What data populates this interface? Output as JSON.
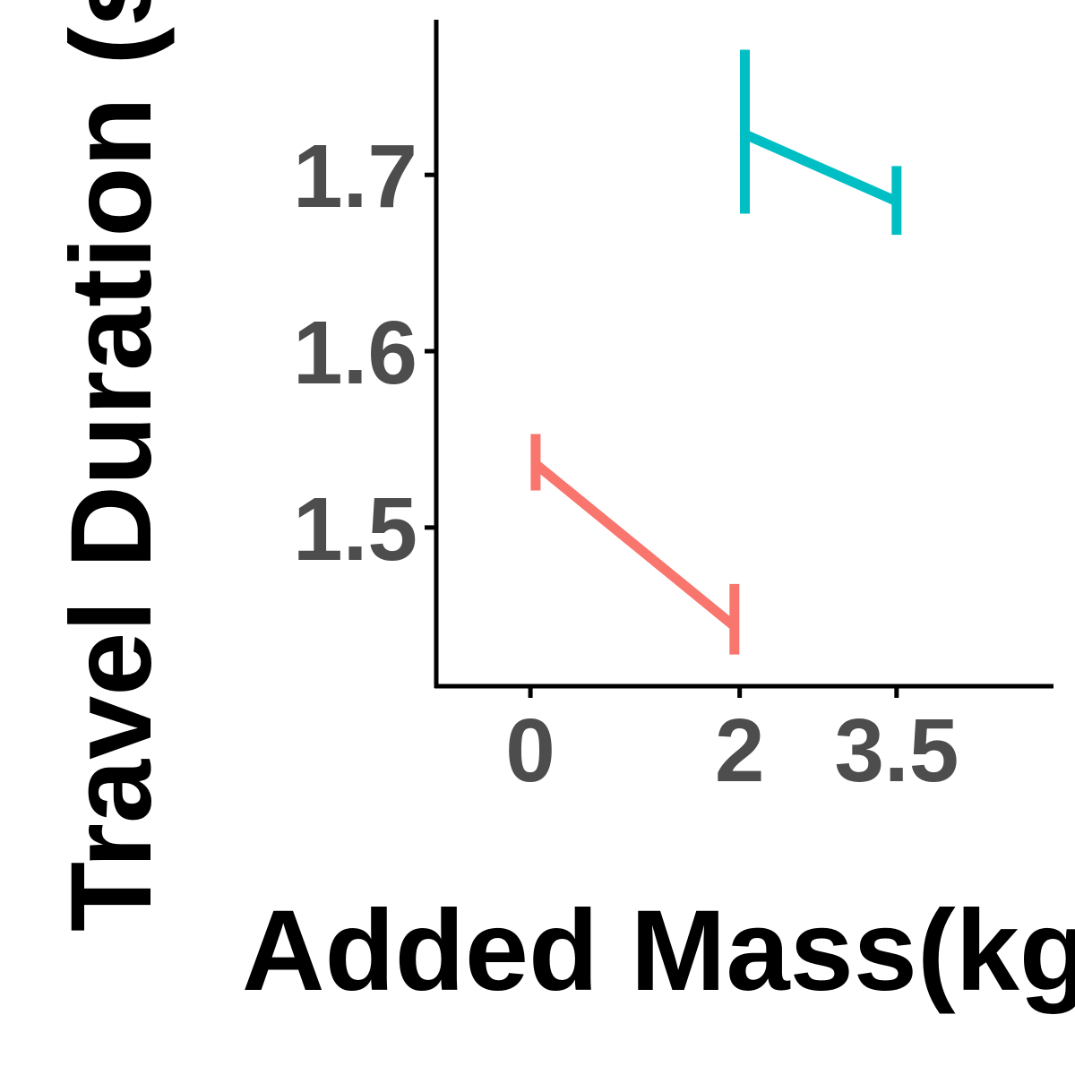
{
  "chart_data": {
    "type": "line",
    "xlabel": "Added Mass(kg)",
    "ylabel": "Travel Duration (s)",
    "x_ticks": [
      0,
      2,
      3.5
    ],
    "x_tick_labels": [
      "0",
      "2",
      "3.5"
    ],
    "y_ticks": [
      1.5,
      1.6,
      1.7
    ],
    "y_tick_labels": [
      "1.5",
      "1.6",
      "1.7"
    ],
    "xlim": [
      -0.9,
      5.0
    ],
    "ylim": [
      1.41,
      1.788
    ],
    "grid": false,
    "legend": "none",
    "series": [
      {
        "color": "#F8766D",
        "points": [
          {
            "x": 0.05,
            "y": 1.536,
            "lo": 1.521,
            "hi": 1.553
          },
          {
            "x": 1.95,
            "y": 1.444,
            "lo": 1.428,
            "hi": 1.468
          }
        ]
      },
      {
        "color": "#00BFC4",
        "points": [
          {
            "x": 2.05,
            "y": 1.723,
            "lo": 1.678,
            "hi": 1.771
          },
          {
            "x": 3.5,
            "y": 1.685,
            "lo": 1.666,
            "hi": 1.705
          }
        ]
      }
    ]
  }
}
